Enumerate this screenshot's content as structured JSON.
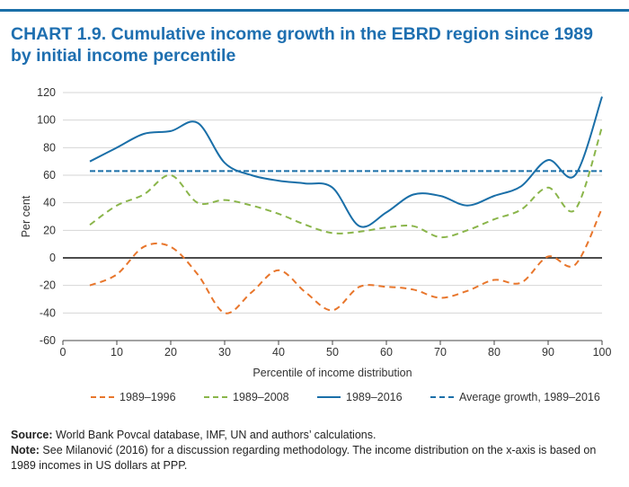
{
  "chart_data": {
    "type": "line",
    "title": "CHART 1.9. Cumulative income growth in the EBRD region since 1989 by initial income percentile",
    "xlabel": "Percentile of income distribution",
    "ylabel": "Per cent",
    "xlim": [
      0,
      100
    ],
    "ylim": [
      -60,
      120
    ],
    "xticks": [
      0,
      10,
      20,
      30,
      40,
      50,
      60,
      70,
      80,
      90,
      100
    ],
    "yticks": [
      -60,
      -40,
      -20,
      0,
      20,
      40,
      60,
      80,
      100,
      120
    ],
    "grid": "horizontal",
    "legend_position": "bottom",
    "series": [
      {
        "name": "1989–1996",
        "style": "dashed",
        "color": "#e8762c",
        "x": [
          5,
          10,
          15,
          20,
          25,
          30,
          35,
          40,
          45,
          50,
          55,
          60,
          65,
          70,
          75,
          80,
          85,
          90,
          95,
          100
        ],
        "y": [
          -20,
          -12,
          8,
          8,
          -12,
          -40,
          -25,
          -9,
          -25,
          -38,
          -21,
          -21,
          -23,
          -29,
          -24,
          -16,
          -18,
          1,
          -5,
          36
        ]
      },
      {
        "name": "1989–2008",
        "style": "dashed",
        "color": "#8ab54a",
        "x": [
          5,
          10,
          15,
          20,
          25,
          30,
          35,
          40,
          45,
          50,
          55,
          60,
          65,
          70,
          75,
          80,
          85,
          90,
          95,
          100
        ],
        "y": [
          24,
          38,
          46,
          60,
          40,
          42,
          38,
          32,
          24,
          18,
          19,
          22,
          23,
          15,
          20,
          28,
          35,
          51,
          35,
          95
        ]
      },
      {
        "name": "1989–2016",
        "style": "solid",
        "color": "#1a6fa8",
        "x": [
          5,
          10,
          15,
          20,
          25,
          30,
          35,
          40,
          45,
          50,
          55,
          60,
          65,
          70,
          75,
          80,
          85,
          90,
          95,
          100
        ],
        "y": [
          70,
          80,
          90,
          92,
          98,
          69,
          60,
          56,
          54,
          51,
          23,
          33,
          46,
          45,
          38,
          45,
          52,
          71,
          60,
          117
        ]
      },
      {
        "name": "Average growth, 1989–2016",
        "style": "dashed",
        "color": "#1a6fa8",
        "x": [
          5,
          100
        ],
        "y": [
          63,
          63
        ]
      }
    ]
  },
  "footer": {
    "source_label": "Source:",
    "source_text": " World Bank Povcal database, IMF, UN and authors’ calculations.",
    "note_label": "Note:",
    "note_text": " See Milanović (2016) for a discussion regarding methodology. The income distribution on the x-axis is based on 1989 incomes in US dollars at PPP."
  }
}
